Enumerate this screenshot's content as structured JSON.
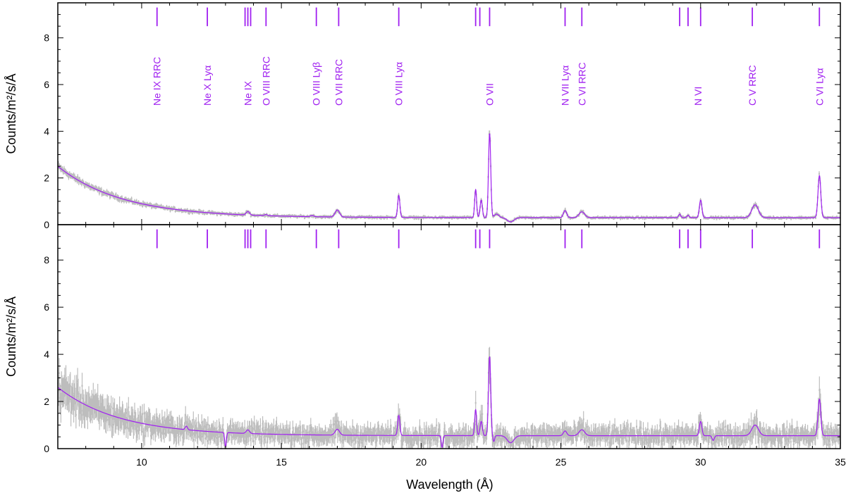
{
  "chart_data": {
    "type": "line",
    "xlabel": "Wavelength (Å)",
    "xlim": [
      7,
      35
    ],
    "x_ticks": [
      10,
      15,
      20,
      25,
      30,
      35
    ],
    "colors": {
      "model": "#a020f0",
      "data": "#bdbdbd",
      "marker": "#a020f0",
      "axes": "#000000"
    },
    "line_markers": [
      10.55,
      12.35,
      13.7,
      13.8,
      13.9,
      14.45,
      16.25,
      17.05,
      19.2,
      21.95,
      22.1,
      22.45,
      25.15,
      25.75,
      29.25,
      29.55,
      30.0,
      31.85,
      34.25
    ],
    "line_labels": [
      {
        "text": "Ne IX RRC",
        "x": 10.55
      },
      {
        "text": "Ne X Lyα",
        "x": 12.35
      },
      {
        "text": "Ne IX",
        "x": 13.8
      },
      {
        "text": "O VIII RRC",
        "x": 14.45
      },
      {
        "text": "O VIII Lyβ",
        "x": 16.25
      },
      {
        "text": "O VII RRC",
        "x": 17.05
      },
      {
        "text": "O VIII Lyα",
        "x": 19.2
      },
      {
        "text": "O VII",
        "x": 22.45
      },
      {
        "text": "N VII Lyα",
        "x": 25.15
      },
      {
        "text": "C VI RRC",
        "x": 25.75
      },
      {
        "text": "N VI",
        "x": 29.9
      },
      {
        "text": "C V RRC",
        "x": 31.85
      },
      {
        "text": "C VI Lyα",
        "x": 34.25
      }
    ],
    "panels": [
      {
        "ylabel": "Counts/m²/s/Å",
        "ylim": [
          0,
          9.5
        ],
        "y_ticks": [
          0,
          2,
          4,
          6,
          8
        ],
        "continuum": {
          "A": 2.2,
          "decay": 2.3,
          "base": 0.3
        },
        "noise_level": 0.1,
        "series": [
          {
            "name": "model",
            "lines": [
              {
                "x": 13.8,
                "amp": 0.15,
                "w": 0.06
              },
              {
                "x": 14.45,
                "amp": 0.05,
                "w": 0.05
              },
              {
                "x": 16.1,
                "amp": 0.05,
                "w": 0.06
              },
              {
                "x": 17.0,
                "amp": 0.3,
                "w": 0.08
              },
              {
                "x": 19.2,
                "amp": 0.95,
                "w": 0.04
              },
              {
                "x": 21.95,
                "amp": 1.2,
                "w": 0.035
              },
              {
                "x": 22.15,
                "amp": 0.75,
                "w": 0.04
              },
              {
                "x": 22.45,
                "amp": 3.6,
                "w": 0.04
              },
              {
                "x": 22.7,
                "amp": 0.15,
                "w": 0.08
              },
              {
                "x": 25.15,
                "amp": 0.3,
                "w": 0.06
              },
              {
                "x": 25.75,
                "amp": 0.25,
                "w": 0.1
              },
              {
                "x": 29.25,
                "amp": 0.15,
                "w": 0.04
              },
              {
                "x": 29.55,
                "amp": 0.1,
                "w": 0.04
              },
              {
                "x": 30.0,
                "amp": 0.75,
                "w": 0.045
              },
              {
                "x": 31.95,
                "amp": 0.55,
                "w": 0.12
              },
              {
                "x": 34.25,
                "amp": 1.8,
                "w": 0.05
              }
            ],
            "absorptions": [
              {
                "x": 23.2,
                "depth": 0.18,
                "w": 0.12
              }
            ]
          }
        ]
      },
      {
        "ylabel": "Counts/m²/s/Å",
        "ylim": [
          0,
          9.5
        ],
        "y_ticks": [
          0,
          2,
          4,
          6,
          8
        ],
        "continuum": {
          "A": 2.05,
          "decay": 2.2,
          "base": 0.55
        },
        "noise_level": 0.4,
        "series": [
          {
            "name": "model",
            "lines": [
              {
                "x": 11.6,
                "amp": 0.15,
                "w": 0.04
              },
              {
                "x": 13.8,
                "amp": 0.15,
                "w": 0.06
              },
              {
                "x": 17.0,
                "amp": 0.25,
                "w": 0.08
              },
              {
                "x": 19.2,
                "amp": 0.85,
                "w": 0.04
              },
              {
                "x": 21.95,
                "amp": 1.1,
                "w": 0.035
              },
              {
                "x": 22.15,
                "amp": 0.6,
                "w": 0.04
              },
              {
                "x": 22.45,
                "amp": 3.35,
                "w": 0.04
              },
              {
                "x": 25.15,
                "amp": 0.2,
                "w": 0.06
              },
              {
                "x": 25.75,
                "amp": 0.25,
                "w": 0.1
              },
              {
                "x": 30.0,
                "amp": 0.6,
                "w": 0.045
              },
              {
                "x": 31.95,
                "amp": 0.45,
                "w": 0.12
              },
              {
                "x": 34.25,
                "amp": 1.55,
                "w": 0.05
              }
            ],
            "absorptions": [
              {
                "x": 13.0,
                "depth": 0.6,
                "w": 0.03
              },
              {
                "x": 20.75,
                "depth": 0.5,
                "w": 0.03
              },
              {
                "x": 22.6,
                "depth": 0.25,
                "w": 0.03
              },
              {
                "x": 23.2,
                "depth": 0.3,
                "w": 0.12
              },
              {
                "x": 30.45,
                "depth": 0.2,
                "w": 0.04
              }
            ]
          }
        ]
      }
    ]
  }
}
